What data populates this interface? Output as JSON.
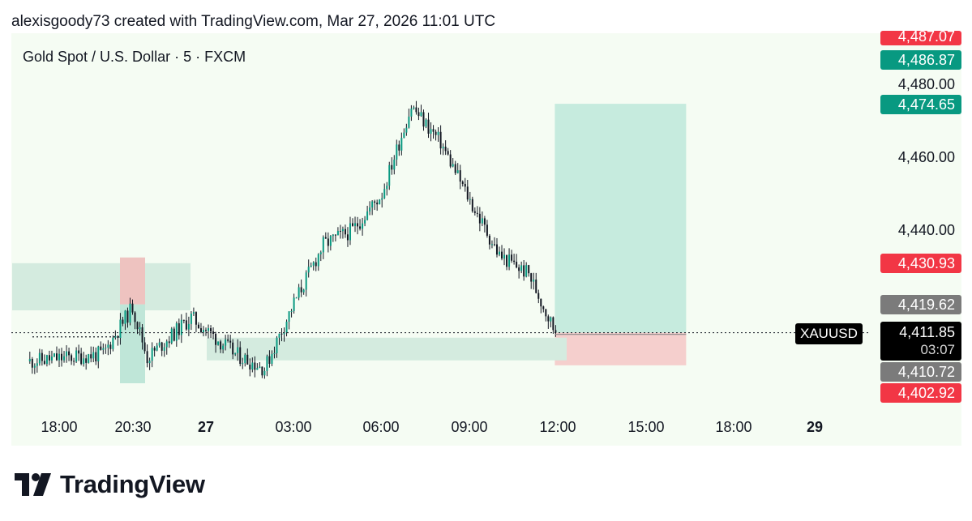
{
  "header": {
    "attribution": "alexisgoody73 created with TradingView.com, Mar 27, 2026 11:01 UTC"
  },
  "chart": {
    "symbol_line": "Gold Spot / U.S. Dollar · 5 · FXCM",
    "symbol_tag": "XAUUSD",
    "countdown": "03:07",
    "price_labels": {
      "p4487": "4,487.07",
      "p4486": "4,486.87",
      "p4480": "4,480.00",
      "p4474": "4,474.65",
      "p4460": "4,460.00",
      "p4440": "4,440.00",
      "p4430": "4,430.93",
      "p4419": "4,419.62",
      "current": "4,411.85",
      "p4410": "4,410.72",
      "p4402": "4,402.92"
    },
    "x_labels": {
      "t1800a": "18:00",
      "t2030": "20:30",
      "d27": "27",
      "t0300": "03:00",
      "t0600": "06:00",
      "t0900": "09:00",
      "t1200": "12:00",
      "t1500": "15:00",
      "t1800b": "18:00",
      "d29": "29"
    }
  },
  "brand": {
    "name": "TradingView"
  },
  "colors": {
    "up": "#089981",
    "down": "#f23645",
    "candle": "#131722",
    "background": "#f5fcf3",
    "target_zone": "#c6ebde",
    "stop_zone": "#f5cfcd"
  },
  "chart_data": {
    "type": "candlestick",
    "title": "Gold Spot / U.S. Dollar · 5 · FXCM",
    "symbol": "XAUUSD",
    "timeframe": "5",
    "current_price": 4411.85,
    "ylim": [
      4398,
      4490
    ],
    "y_ticks": [
      4440.0,
      4460.0,
      4480.0
    ],
    "x_tick_labels": [
      "18:00",
      "20:30",
      "27",
      "03:00",
      "06:00",
      "09:00",
      "12:00",
      "15:00",
      "18:00",
      "29"
    ],
    "price_path": [
      {
        "time": "Mar 26 17:00",
        "price": 4404
      },
      {
        "time": "Mar 26 19:30",
        "price": 4406
      },
      {
        "time": "Mar 26 20:30",
        "price": 4419
      },
      {
        "time": "Mar 26 21:00",
        "price": 4405
      },
      {
        "time": "Mar 26 22:30",
        "price": 4416
      },
      {
        "time": "Mar 27 00:00",
        "price": 4406
      },
      {
        "time": "Mar 27 01:00",
        "price": 4402
      },
      {
        "time": "Mar 27 02:00",
        "price": 4420
      },
      {
        "time": "Mar 27 03:00",
        "price": 4436
      },
      {
        "time": "Mar 27 04:00",
        "price": 4440
      },
      {
        "time": "Mar 27 05:00",
        "price": 4450
      },
      {
        "time": "Mar 27 06:00",
        "price": 4474
      },
      {
        "time": "Mar 27 07:00",
        "price": 4464
      },
      {
        "time": "Mar 27 08:00",
        "price": 4448
      },
      {
        "time": "Mar 27 09:00",
        "price": 4433
      },
      {
        "time": "Mar 27 10:00",
        "price": 4428
      },
      {
        "time": "Mar 27 10:55",
        "price": 4411.85
      }
    ],
    "levels": [
      4487.07,
      4486.87,
      4474.65,
      4430.93,
      4419.62,
      4411.85,
      4410.72,
      4402.92
    ],
    "position_tool": {
      "side": "long",
      "entry": 4411.85,
      "target": 4474.65,
      "stop": 4402.92
    }
  }
}
